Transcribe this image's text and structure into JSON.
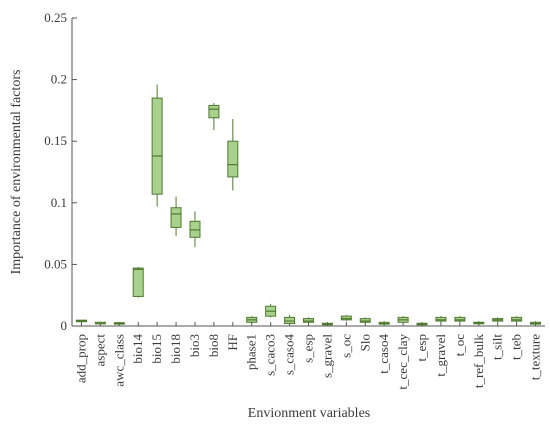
{
  "chart_data": {
    "type": "box",
    "xlabel": "Envionment variables",
    "ylabel": "Importance of environmental factors",
    "ylim": [
      0,
      0.25
    ],
    "yticks": [
      0,
      0.05,
      0.1,
      0.15,
      0.2,
      0.25
    ],
    "ytick_labels": [
      "0",
      "0.05",
      "0.1",
      "0.15",
      "0.2",
      "0.25"
    ],
    "grid": false,
    "box_fill": "#a9d18e",
    "box_stroke": "#4e7a2f",
    "categories": [
      "add_prop",
      "aspect",
      "awc_class",
      "bio14",
      "bio15",
      "bio18",
      "bio3",
      "bio8",
      "HF",
      "phase1",
      "s_caco3",
      "s_caso4",
      "s_esp",
      "s_gravel",
      "s_oc",
      "Slo",
      "t_caso4",
      "t_cec_clay",
      "t_esp",
      "t_gravel",
      "t_oc",
      "t_ref_bulk",
      "t_silt",
      "t_teb",
      "t_texture"
    ],
    "boxes": [
      {
        "min": 0.003,
        "q1": 0.0035,
        "median": 0.004,
        "q3": 0.0045,
        "max": 0.005
      },
      {
        "min": 0.0015,
        "q1": 0.0018,
        "median": 0.002,
        "q3": 0.0025,
        "max": 0.003
      },
      {
        "min": 0.001,
        "q1": 0.0015,
        "median": 0.002,
        "q3": 0.0025,
        "max": 0.003
      },
      {
        "min": 0.023,
        "q1": 0.024,
        "median": 0.046,
        "q3": 0.047,
        "max": 0.048
      },
      {
        "min": 0.097,
        "q1": 0.107,
        "median": 0.138,
        "q3": 0.185,
        "max": 0.196
      },
      {
        "min": 0.073,
        "q1": 0.08,
        "median": 0.091,
        "q3": 0.096,
        "max": 0.105
      },
      {
        "min": 0.064,
        "q1": 0.072,
        "median": 0.078,
        "q3": 0.085,
        "max": 0.093
      },
      {
        "min": 0.159,
        "q1": 0.169,
        "median": 0.176,
        "q3": 0.179,
        "max": 0.181
      },
      {
        "min": 0.11,
        "q1": 0.121,
        "median": 0.131,
        "q3": 0.15,
        "max": 0.168
      },
      {
        "min": 0.002,
        "q1": 0.003,
        "median": 0.005,
        "q3": 0.007,
        "max": 0.008
      },
      {
        "min": 0.007,
        "q1": 0.008,
        "median": 0.012,
        "q3": 0.016,
        "max": 0.018
      },
      {
        "min": 0.001,
        "q1": 0.002,
        "median": 0.004,
        "q3": 0.007,
        "max": 0.009
      },
      {
        "min": 0.002,
        "q1": 0.003,
        "median": 0.004,
        "q3": 0.006,
        "max": 0.007
      },
      {
        "min": 0.0005,
        "q1": 0.001,
        "median": 0.0015,
        "q3": 0.002,
        "max": 0.0025
      },
      {
        "min": 0.004,
        "q1": 0.005,
        "median": 0.006,
        "q3": 0.008,
        "max": 0.009
      },
      {
        "min": 0.002,
        "q1": 0.003,
        "median": 0.004,
        "q3": 0.006,
        "max": 0.007
      },
      {
        "min": 0.001,
        "q1": 0.0015,
        "median": 0.002,
        "q3": 0.003,
        "max": 0.004
      },
      {
        "min": 0.002,
        "q1": 0.003,
        "median": 0.005,
        "q3": 0.007,
        "max": 0.008
      },
      {
        "min": 0.0005,
        "q1": 0.001,
        "median": 0.0015,
        "q3": 0.002,
        "max": 0.0025
      },
      {
        "min": 0.003,
        "q1": 0.004,
        "median": 0.005,
        "q3": 0.007,
        "max": 0.008
      },
      {
        "min": 0.003,
        "q1": 0.004,
        "median": 0.005,
        "q3": 0.007,
        "max": 0.008
      },
      {
        "min": 0.001,
        "q1": 0.0018,
        "median": 0.0025,
        "q3": 0.003,
        "max": 0.004
      },
      {
        "min": 0.003,
        "q1": 0.004,
        "median": 0.005,
        "q3": 0.006,
        "max": 0.007
      },
      {
        "min": 0.003,
        "q1": 0.004,
        "median": 0.005,
        "q3": 0.007,
        "max": 0.008
      },
      {
        "min": 0.001,
        "q1": 0.0015,
        "median": 0.002,
        "q3": 0.003,
        "max": 0.004
      }
    ]
  }
}
